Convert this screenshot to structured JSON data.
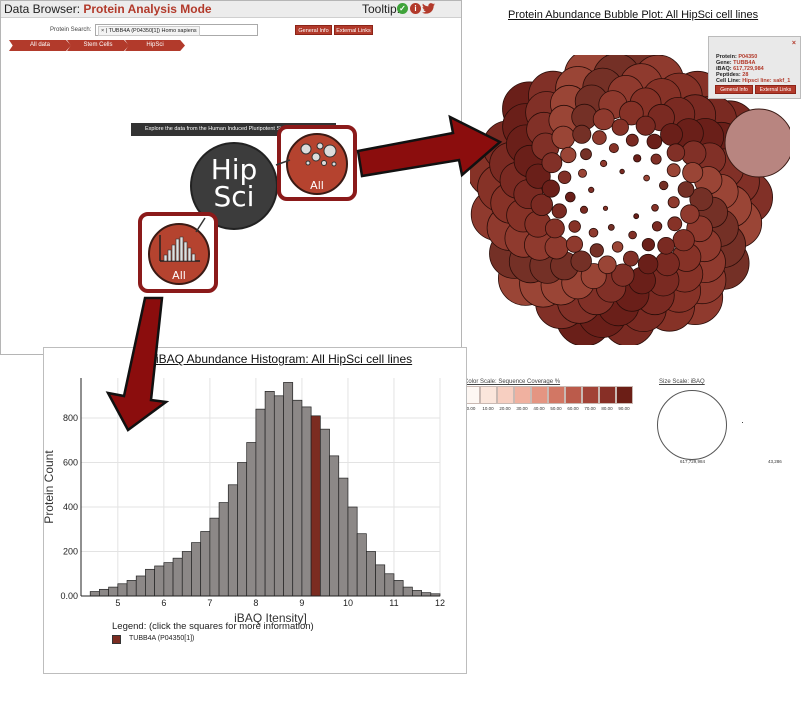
{
  "browser": {
    "title_prefix": "Data Browser: ",
    "title_mode": "Protein Analysis Mode",
    "tooltip_label": "Tooltip:",
    "tooltip_icons": [
      "check-icon",
      "info-icon",
      "twitter-icon"
    ],
    "search": {
      "label": "Protein Search:",
      "token": "× | TUBB4A (P04350[1]) Homo sapiens"
    },
    "buttons": {
      "general_info": "General Info",
      "external_links": "External Links"
    },
    "breadcrumbs": [
      "All data",
      "Stem Cells",
      "HipSci"
    ],
    "explore_banner": "Explore the data from the Human Induced Pluripotent Stem Cell Initiative",
    "logo_text": "Hip\nSci",
    "tile_bubble_label": "All",
    "tile_histogram_label": "All"
  },
  "bubble": {
    "title": "Protein Abundance Bubble Plot: All HipSci cell lines",
    "tooltip": {
      "close": "×",
      "rows": [
        {
          "key": "Protein:",
          "value": "P04350"
        },
        {
          "key": "Gene:",
          "value": "TUBB4A"
        },
        {
          "key": "iBAQ:",
          "value": "617,729,984"
        },
        {
          "key": "Peptides:",
          "value": "28"
        },
        {
          "key": "Cell Line:",
          "value": "Hipsci line: sakf_1"
        }
      ],
      "general_info": "General Info",
      "external_links": "External Links"
    }
  },
  "scales": {
    "color_title": "Color Scale: Sequence Coverage %",
    "color_stops": [
      "0.00",
      "10.00",
      "20.00",
      "30.00",
      "40.00",
      "50.00",
      "60.00",
      "70.00",
      "80.00",
      "90.00"
    ],
    "color_swatches": [
      "#fdf7f3",
      "#fbe6dc",
      "#f7cfc1",
      "#f0b1a0",
      "#e49582",
      "#d27764",
      "#bb5b4b",
      "#a24337",
      "#872f26",
      "#6b1e16"
    ],
    "size_title": "Size Scale: iBAQ",
    "size_max": "617,729,984",
    "size_min": "43,286"
  },
  "histogram": {
    "title": "iBAQ Abundance Histogram: All HipSci cell lines",
    "legend_title": "Legend: (click the squares for more information)",
    "legend_item": "TUBB4A (P04350[1])",
    "highlight_color": "#7b2c21",
    "bar_color": "#8c8887"
  },
  "chart_data": {
    "type": "bar",
    "title": "iBAQ Abundance Histogram: All HipSci cell lines",
    "xlabel": "iBAQ Itensity]",
    "ylabel": "Protein Count",
    "xlim": [
      4.2,
      12
    ],
    "ylim": [
      0,
      980
    ],
    "xticks": [
      "5",
      "6",
      "7",
      "8",
      "9",
      "10",
      "11",
      "12"
    ],
    "yticks": [
      "0.00",
      "200",
      "400",
      "600",
      "800"
    ],
    "bin_width": 0.2,
    "bin_start": 4.4,
    "values": [
      20,
      30,
      40,
      55,
      70,
      90,
      120,
      135,
      150,
      170,
      200,
      240,
      290,
      350,
      420,
      500,
      600,
      690,
      840,
      920,
      900,
      960,
      880,
      850,
      810,
      750,
      630,
      530,
      400,
      280,
      200,
      140,
      100,
      70,
      40,
      25,
      15,
      10
    ],
    "highlight_bin_index": 24,
    "highlight_label": "TUBB4A (P04350[1])",
    "grid": true
  }
}
